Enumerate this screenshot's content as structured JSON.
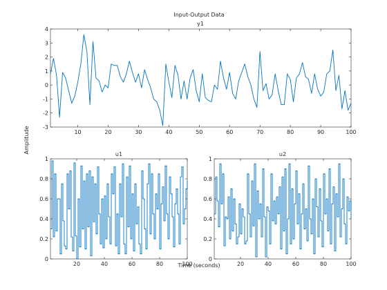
{
  "figure": {
    "title": "Input-Output Data",
    "ylabel": "Amplitude",
    "xlabel": "Time (seconds)"
  },
  "chart_data": [
    {
      "type": "line",
      "title": "y1",
      "x_start": 1,
      "x_step": 1,
      "xlim": [
        1,
        100
      ],
      "ylim": [
        -3,
        4
      ],
      "xticks": [
        10,
        20,
        30,
        40,
        50,
        60,
        70,
        80,
        90,
        100
      ],
      "yticks": [
        -3,
        -2,
        -1,
        0,
        1,
        2,
        3,
        4
      ],
      "grid": false,
      "series": [
        {
          "color": "#0072BD",
          "values": [
            0.8,
            1.9,
            0.7,
            -2.3,
            0.9,
            0.5,
            -0.4,
            -1.3,
            -0.8,
            0.2,
            1.5,
            3.6,
            2.4,
            -1.4,
            3.1,
            0.5,
            0.3,
            -0.5,
            0.0,
            -0.2,
            1.5,
            1.4,
            1.4,
            0.6,
            0.2,
            0.8,
            1.7,
            0.9,
            0.2,
            0.8,
            -0.2,
            1.1,
            0.4,
            -0.2,
            -1.0,
            -1.2,
            -1.8,
            -2.9,
            1.5,
            0.2,
            -0.9,
            1.4,
            0.7,
            -1.0,
            0.3,
            -1.0,
            0.5,
            1.1,
            -0.4,
            -1.2,
            0.8,
            -0.9,
            -1.1,
            -1.2,
            0.0,
            -0.3,
            1.7,
            0.5,
            -0.3,
            0.9,
            -0.6,
            -1.0,
            0.3,
            0.9,
            1.5,
            0.6,
            0.0,
            -1.0,
            -1.6,
            2.4,
            -0.4,
            0.1,
            -1.0,
            -0.7,
            0.8,
            -0.4,
            -1.4,
            -1.4,
            0.8,
            0.4,
            -1.2,
            0.5,
            0.8,
            1.6,
            0.6,
            0.4,
            -0.6,
            0.8,
            -0.3,
            -0.8,
            -0.5,
            0.8,
            1.0,
            2.5,
            -0.4,
            0.7,
            -1.7,
            -0.4,
            -1.8,
            -1.3
          ]
        }
      ]
    },
    {
      "type": "line",
      "title": "u1",
      "step": true,
      "x_start": 1,
      "x_step": 1,
      "xlim": [
        1,
        100
      ],
      "ylim": [
        0,
        1
      ],
      "xticks": [
        20,
        40,
        60,
        80,
        100
      ],
      "yticks": [
        0,
        0.2,
        0.4,
        0.6,
        0.8,
        1
      ],
      "grid": false,
      "series": [
        {
          "color": "#0072BD",
          "values": [
            0.3,
            0.98,
            0.22,
            0.85,
            0.28,
            0.6,
            0.6,
            0.05,
            0.75,
            0.38,
            0.13,
            0.1,
            0.85,
            0.5,
            0.88,
            0.22,
            0.08,
            0.96,
            0.23,
            0.0,
            0.6,
            0.12,
            0.93,
            0.3,
            0.78,
            0.1,
            0.85,
            0.32,
            0.88,
            0.03,
            0.82,
            0.37,
            0.75,
            0.25,
            0.92,
            0.45,
            0.15,
            0.6,
            0.11,
            0.63,
            0.2,
            0.75,
            0.42,
            0.15,
            0.85,
            0.65,
            0.92,
            0.13,
            0.45,
            0.05,
            0.75,
            0.42,
            0.95,
            0.15,
            0.05,
            0.82,
            0.32,
            0.93,
            0.2,
            0.65,
            0.08,
            0.75,
            0.35,
            0.52,
            0.15,
            0.05,
            0.88,
            0.6,
            0.3,
            0.1,
            0.75,
            0.95,
            0.25,
            0.85,
            0.45,
            0.2,
            0.65,
            0.5,
            0.85,
            0.1,
            0.55,
            0.72,
            0.38,
            0.93,
            0.45,
            0.2,
            0.82,
            0.65,
            0.42,
            0.12,
            0.55,
            0.7,
            0.45,
            0.15,
            0.82,
            0.92,
            0.35,
            0.5,
            0.7,
            0.78
          ]
        }
      ]
    },
    {
      "type": "line",
      "title": "u2",
      "step": true,
      "x_start": 1,
      "x_step": 1,
      "xlim": [
        1,
        100
      ],
      "ylim": [
        0,
        1
      ],
      "xticks": [
        20,
        40,
        60,
        80,
        100
      ],
      "yticks": [
        0,
        0.2,
        0.4,
        0.6,
        0.8,
        1
      ],
      "grid": false,
      "series": [
        {
          "color": "#0072BD",
          "values": [
            0.45,
            0.82,
            0.58,
            0.32,
            0.95,
            0.55,
            0.85,
            0.13,
            0.42,
            0.4,
            0.62,
            0.2,
            0.7,
            0.28,
            0.6,
            0.35,
            0.15,
            0.22,
            0.55,
            0.25,
            0.5,
            0.42,
            0.15,
            0.18,
            0.85,
            0.45,
            0.22,
            0.78,
            0.33,
            0.95,
            0.02,
            0.68,
            0.4,
            0.55,
            0.22,
            0.9,
            0.42,
            0.02,
            0.52,
            0.48,
            0.15,
            0.85,
            0.38,
            0.58,
            0.35,
            0.62,
            0.45,
            0.72,
            0.1,
            0.82,
            0.28,
            0.9,
            0.05,
            0.4,
            0.95,
            0.15,
            0.7,
            0.2,
            0.55,
            0.88,
            0.35,
            0.65,
            0.1,
            0.45,
            0.75,
            0.3,
            0.5,
            0.18,
            0.93,
            0.4,
            0.25,
            0.6,
            0.05,
            0.8,
            0.52,
            0.22,
            0.7,
            0.38,
            0.12,
            0.85,
            0.45,
            0.6,
            0.28,
            0.9,
            0.15,
            0.55,
            0.72,
            0.08,
            0.65,
            0.42,
            0.95,
            0.22,
            0.5,
            0.8,
            0.35,
            0.15,
            0.62,
            0.48,
            0.58,
            0.4
          ]
        }
      ]
    }
  ]
}
